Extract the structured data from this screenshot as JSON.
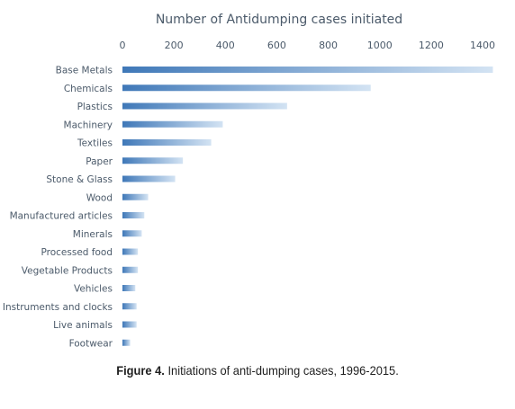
{
  "chart_data": {
    "type": "bar",
    "orientation": "horizontal",
    "title": "Number of Antidumping cases initiated",
    "xlim": [
      0,
      1400
    ],
    "xticks": [
      "0",
      "200",
      "400",
      "600",
      "800",
      "1000",
      "1200",
      "1400"
    ],
    "categories": [
      "Base Metals",
      "Chemicals",
      "Plastics",
      "Machinery",
      "Textiles",
      "Paper",
      "Stone & Glass",
      "Wood",
      "Manufactured articles",
      "Minerals",
      "Processed food",
      "Vegetable Products",
      "Vehicles",
      "Instruments and clocks",
      "Live animals",
      "Footwear"
    ],
    "values": [
      1440,
      965,
      640,
      390,
      345,
      235,
      205,
      100,
      85,
      75,
      60,
      60,
      50,
      55,
      55,
      30
    ],
    "grid": false,
    "legend": "none",
    "bar_color_start": "#3f78b8",
    "bar_color_end": "#d3e3f3"
  },
  "caption": {
    "figure_label": "Figure 4.",
    "text": " Initiations of anti-dumping cases, 1996-2015."
  }
}
